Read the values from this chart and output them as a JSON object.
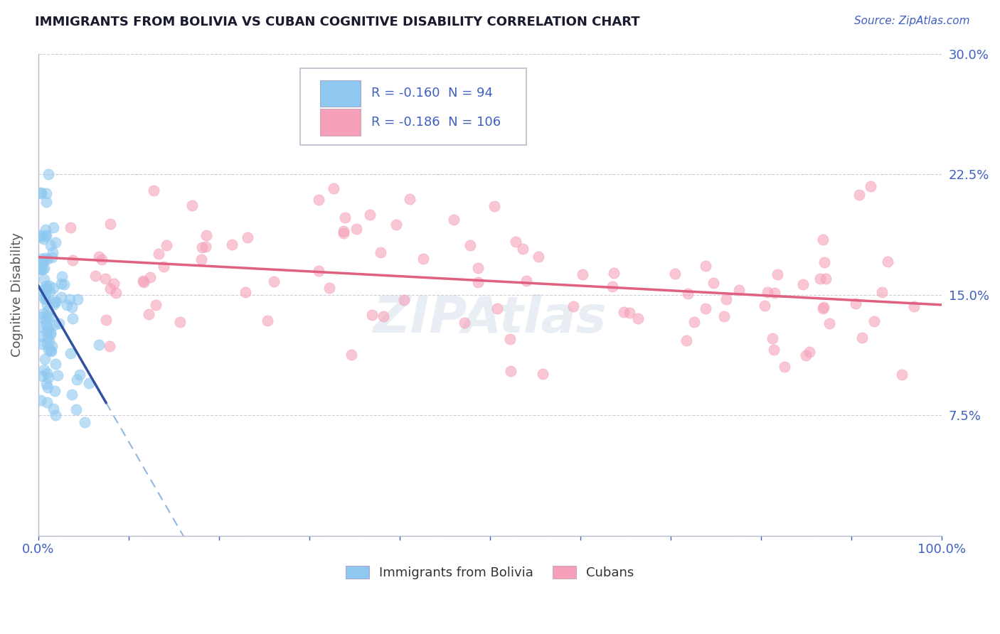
{
  "title": "IMMIGRANTS FROM BOLIVIA VS CUBAN COGNITIVE DISABILITY CORRELATION CHART",
  "source_text": "Source: ZipAtlas.com",
  "ylabel": "Cognitive Disability",
  "xlim": [
    0.0,
    1.0
  ],
  "ylim": [
    0.0,
    0.3
  ],
  "bolivia_color": "#8EC8F0",
  "cuba_color": "#F5A0B8",
  "bolivia_line_color": "#3050A0",
  "cuba_line_color": "#E06080",
  "dashed_line_color": "#90B8E0",
  "legend_R_bolivia": "-0.160",
  "legend_N_bolivia": "94",
  "legend_R_cuba": "-0.186",
  "legend_N_cuba": "106",
  "text_color": "#4060C0",
  "title_color": "#1a1a2e",
  "background_color": "#ffffff",
  "grid_color": "#c8c8d8",
  "watermark": "ZIPAtlas"
}
